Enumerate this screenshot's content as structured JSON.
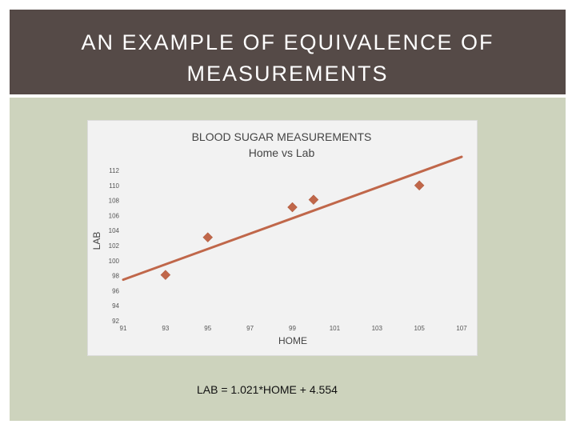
{
  "slide": {
    "title": "AN EXAMPLE OF EQUIVALENCE OF\nMEASUREMENTS",
    "equation": "LAB = 1.021*HOME + 4.554"
  },
  "colors": {
    "title_bar": "#554a47",
    "panel": "#cdd3bd",
    "chart_bg": "#f2f2f2",
    "marker": "#c0674a",
    "trendline": "#c0674a"
  },
  "chart_data": {
    "type": "scatter",
    "title": "BLOOD SUGAR MEASUREMENTS",
    "subtitle": "Home vs Lab",
    "xlabel": "HOME",
    "ylabel": "LAB",
    "xlim": [
      91,
      107
    ],
    "ylim": [
      92,
      112
    ],
    "xticks": [
      91,
      93,
      95,
      97,
      99,
      101,
      103,
      105,
      107
    ],
    "yticks": [
      92,
      94,
      96,
      98,
      100,
      102,
      104,
      106,
      108,
      110,
      112
    ],
    "grid": false,
    "legend": "none",
    "marker": "diamond",
    "points": [
      {
        "x": 93,
        "y": 98.1
      },
      {
        "x": 95,
        "y": 103.1
      },
      {
        "x": 99,
        "y": 107.1
      },
      {
        "x": 100,
        "y": 108.1
      },
      {
        "x": 105,
        "y": 110.0
      }
    ],
    "trendline": {
      "slope": 1.021,
      "intercept": 4.554,
      "x_range": [
        91,
        107
      ]
    }
  }
}
